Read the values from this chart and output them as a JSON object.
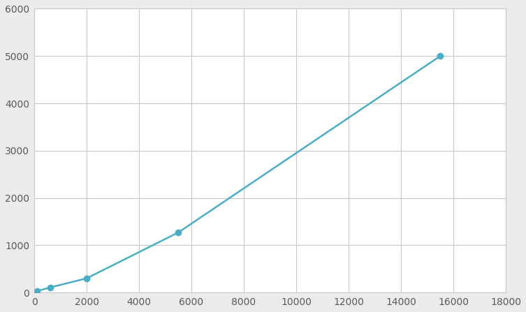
{
  "x": [
    100,
    625,
    2000,
    5500,
    15500
  ],
  "y": [
    30,
    110,
    300,
    1270,
    5000
  ],
  "line_color": "#4BACC6",
  "marker_color": "#4BACC6",
  "marker_size": 7,
  "line_width": 1.8,
  "xlim": [
    0,
    18000
  ],
  "ylim": [
    0,
    6000
  ],
  "xticks": [
    0,
    2000,
    4000,
    6000,
    8000,
    10000,
    12000,
    14000,
    16000,
    18000
  ],
  "yticks": [
    0,
    1000,
    2000,
    3000,
    4000,
    5000,
    6000
  ],
  "grid_color": "#C8C8C8",
  "background_color": "#EBEBEB",
  "plot_background": "#FFFFFF"
}
